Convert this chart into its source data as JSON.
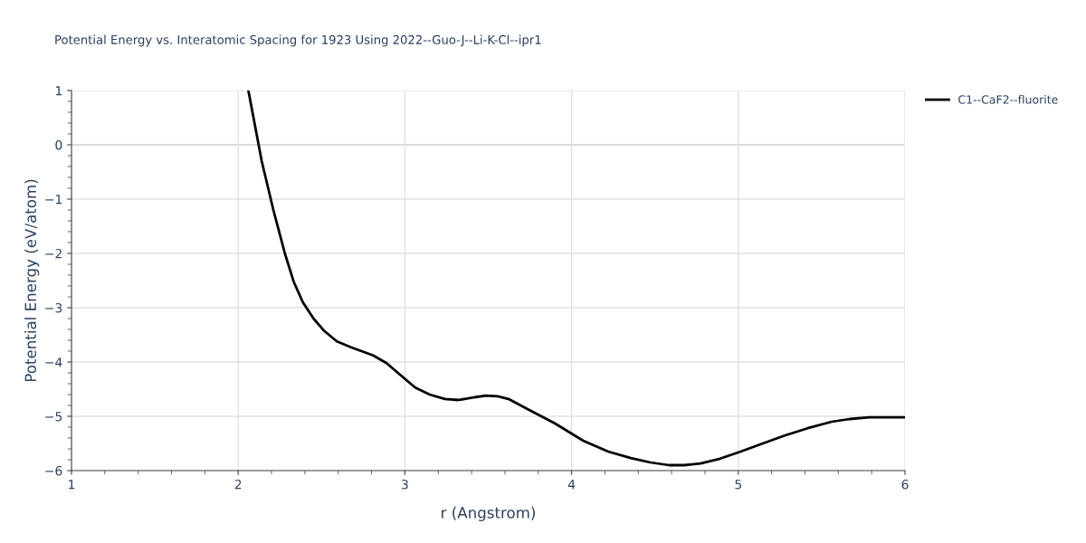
{
  "chart_data": {
    "type": "line",
    "title": "Potential Energy vs. Interatomic Spacing for 1923 Using 2022--Guo-J--Li-K-Cl--ipr1",
    "xlabel": "r (Angstrom)",
    "ylabel": "Potential Energy (eV/atom)",
    "x": [
      2.061,
      2.141,
      2.211,
      2.28,
      2.334,
      2.388,
      2.452,
      2.517,
      2.592,
      2.677,
      2.81,
      2.89,
      2.977,
      3.062,
      3.149,
      3.24,
      3.32,
      3.417,
      3.487,
      3.556,
      3.621,
      3.738,
      3.899,
      4.07,
      4.22,
      4.355,
      4.473,
      4.585,
      4.676,
      4.773,
      4.891,
      5.014,
      5.121,
      5.282,
      5.416,
      5.56,
      5.668,
      5.786,
      6.0
    ],
    "series": [
      {
        "name": "C1--CaF2--fluorite",
        "color": "#000000",
        "values": [
          1.0,
          -0.3,
          -1.2,
          -2.0,
          -2.53,
          -2.9,
          -3.2,
          -3.43,
          -3.62,
          -3.73,
          -3.88,
          -4.02,
          -4.25,
          -4.47,
          -4.6,
          -4.68,
          -4.7,
          -4.65,
          -4.62,
          -4.63,
          -4.68,
          -4.87,
          -5.13,
          -5.45,
          -5.65,
          -5.77,
          -5.85,
          -5.9,
          -5.9,
          -5.87,
          -5.78,
          -5.65,
          -5.53,
          -5.35,
          -5.22,
          -5.1,
          -5.05,
          -5.02,
          -5.02
        ]
      }
    ],
    "xlim": [
      1,
      6
    ],
    "xticks": [
      1,
      2,
      3,
      4,
      5,
      6
    ],
    "ylim": [
      -6,
      1
    ],
    "yticks": [
      -6,
      -5,
      -4,
      -3,
      -2,
      -1,
      0,
      1
    ],
    "grid": true,
    "legend": "top right",
    "marker": "none",
    "line_style": "solid"
  }
}
